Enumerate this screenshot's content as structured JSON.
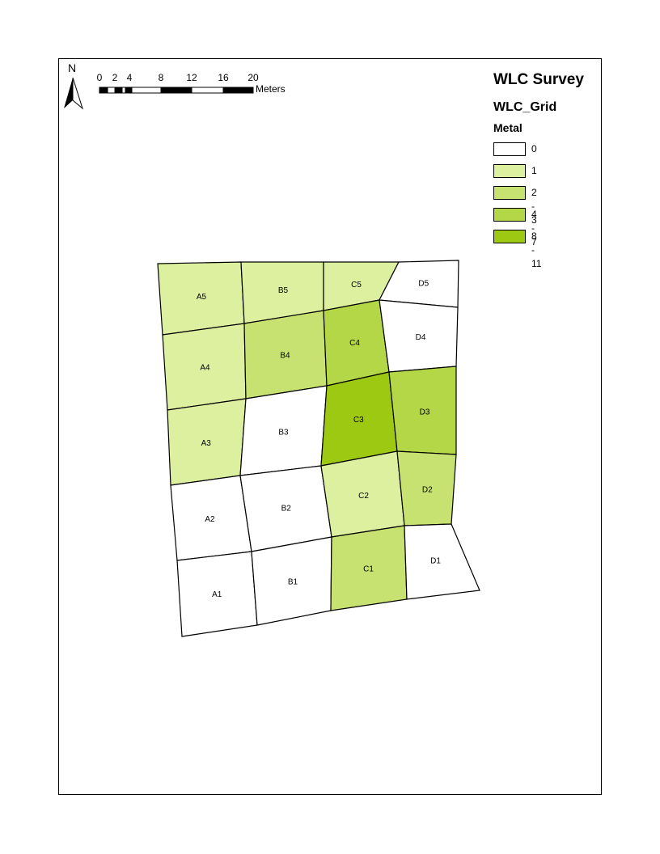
{
  "map": {
    "title": "WLC Survey",
    "layer_name": "WLC_Grid",
    "field_name": "Metal"
  },
  "north_arrow": {
    "label": "N",
    "icon": "north-arrow-icon"
  },
  "scale_bar": {
    "ticks": [
      "0",
      "2",
      "4",
      "8",
      "12",
      "16",
      "20"
    ],
    "units": "Meters"
  },
  "legend": [
    {
      "label": "0",
      "color": "#ffffff"
    },
    {
      "label": "1",
      "color": "#dcf0a0"
    },
    {
      "label": "2 - 3",
      "color": "#c8e272"
    },
    {
      "label": "4 - 7",
      "color": "#b4d748"
    },
    {
      "label": "8 - 11",
      "color": "#9ec913"
    }
  ],
  "cells": [
    {
      "id": "A5",
      "class": 1
    },
    {
      "id": "B5",
      "class": 1
    },
    {
      "id": "C5",
      "class": 1
    },
    {
      "id": "D5",
      "class": 0
    },
    {
      "id": "A4",
      "class": 1
    },
    {
      "id": "B4",
      "class": 2
    },
    {
      "id": "C4",
      "class": 3
    },
    {
      "id": "D4",
      "class": 0
    },
    {
      "id": "A3",
      "class": 1
    },
    {
      "id": "B3",
      "class": 0
    },
    {
      "id": "C3",
      "class": 4
    },
    {
      "id": "D3",
      "class": 3
    },
    {
      "id": "A2",
      "class": 0
    },
    {
      "id": "B2",
      "class": 0
    },
    {
      "id": "C2",
      "class": 1
    },
    {
      "id": "D2",
      "class": 2
    },
    {
      "id": "A1",
      "class": 0
    },
    {
      "id": "B1",
      "class": 0
    },
    {
      "id": "C1",
      "class": 2
    },
    {
      "id": "D1",
      "class": 0
    }
  ]
}
